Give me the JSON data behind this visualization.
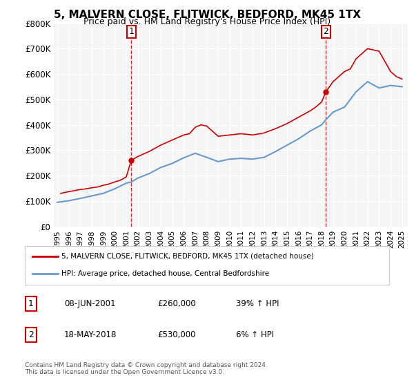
{
  "title": "5, MALVERN CLOSE, FLITWICK, BEDFORD, MK45 1TX",
  "subtitle": "Price paid vs. HM Land Registry's House Price Index (HPI)",
  "legend_line1": "5, MALVERN CLOSE, FLITWICK, BEDFORD, MK45 1TX (detached house)",
  "legend_line2": "HPI: Average price, detached house, Central Bedfordshire",
  "sale1_label": "1",
  "sale1_date": "08-JUN-2001",
  "sale1_price": "£260,000",
  "sale1_hpi": "39% ↑ HPI",
  "sale1_year": 2001.44,
  "sale1_value": 260000,
  "sale2_label": "2",
  "sale2_date": "18-MAY-2018",
  "sale2_price": "£530,000",
  "sale2_hpi": "6% ↑ HPI",
  "sale2_year": 2018.37,
  "sale2_value": 530000,
  "footer": "Contains HM Land Registry data © Crown copyright and database right 2024.\nThis data is licensed under the Open Government Licence v3.0.",
  "ylim": [
    0,
    800000
  ],
  "xlim_start": 1995,
  "xlim_end": 2025.5,
  "sale_color": "#cc0000",
  "hpi_color": "#6699cc",
  "background_color": "#ffffff",
  "plot_bg_color": "#f5f5f5",
  "grid_color": "#ffffff",
  "hpi_years": [
    1995,
    1996,
    1997,
    1998,
    1999,
    2000,
    2001,
    2001.44,
    2002,
    2003,
    2004,
    2005,
    2006,
    2007,
    2008,
    2009,
    2010,
    2011,
    2012,
    2013,
    2014,
    2015,
    2016,
    2017,
    2018,
    2018.37,
    2019,
    2020,
    2021,
    2022,
    2023,
    2024,
    2025
  ],
  "hpi_values": [
    95000,
    101000,
    110000,
    120000,
    130000,
    148000,
    170000,
    175000,
    190000,
    208000,
    232000,
    248000,
    270000,
    288000,
    272000,
    255000,
    265000,
    268000,
    265000,
    272000,
    295000,
    320000,
    345000,
    375000,
    400000,
    420000,
    450000,
    470000,
    530000,
    570000,
    545000,
    555000,
    550000
  ],
  "price_years": [
    1995.3,
    1996.0,
    1997.0,
    1997.5,
    1998.0,
    1998.5,
    1999.0,
    1999.5,
    2000.0,
    2000.5,
    2001.0,
    2001.44,
    2002.0,
    2003.0,
    2004.0,
    2005.0,
    2005.5,
    2006.0,
    2006.5,
    2007.0,
    2007.5,
    2008.0,
    2008.5,
    2009.0,
    2010.0,
    2011.0,
    2012.0,
    2013.0,
    2014.0,
    2015.0,
    2016.0,
    2017.0,
    2017.5,
    2018.0,
    2018.37,
    2019.0,
    2019.5,
    2020.0,
    2020.5,
    2021.0,
    2021.5,
    2022.0,
    2022.5,
    2023.0,
    2023.5,
    2024.0,
    2024.5,
    2025.0
  ],
  "price_values": [
    130000,
    137000,
    145000,
    148000,
    152000,
    155000,
    162000,
    167000,
    175000,
    182000,
    195000,
    260000,
    275000,
    295000,
    320000,
    340000,
    350000,
    360000,
    365000,
    390000,
    400000,
    395000,
    375000,
    355000,
    360000,
    365000,
    360000,
    368000,
    385000,
    405000,
    430000,
    455000,
    470000,
    490000,
    530000,
    570000,
    590000,
    610000,
    620000,
    660000,
    680000,
    700000,
    695000,
    690000,
    650000,
    610000,
    590000,
    580000
  ],
  "xtick_years": [
    1995,
    1996,
    1997,
    1998,
    1999,
    2000,
    2001,
    2002,
    2003,
    2004,
    2005,
    2006,
    2007,
    2008,
    2009,
    2010,
    2011,
    2012,
    2013,
    2014,
    2015,
    2016,
    2017,
    2018,
    2019,
    2020,
    2021,
    2022,
    2023,
    2024,
    2025
  ],
  "ytick_values": [
    0,
    100000,
    200000,
    300000,
    400000,
    500000,
    600000,
    700000,
    800000
  ],
  "ytick_labels": [
    "£0",
    "£100K",
    "£200K",
    "£300K",
    "£400K",
    "£500K",
    "£600K",
    "£700K",
    "£800K"
  ]
}
